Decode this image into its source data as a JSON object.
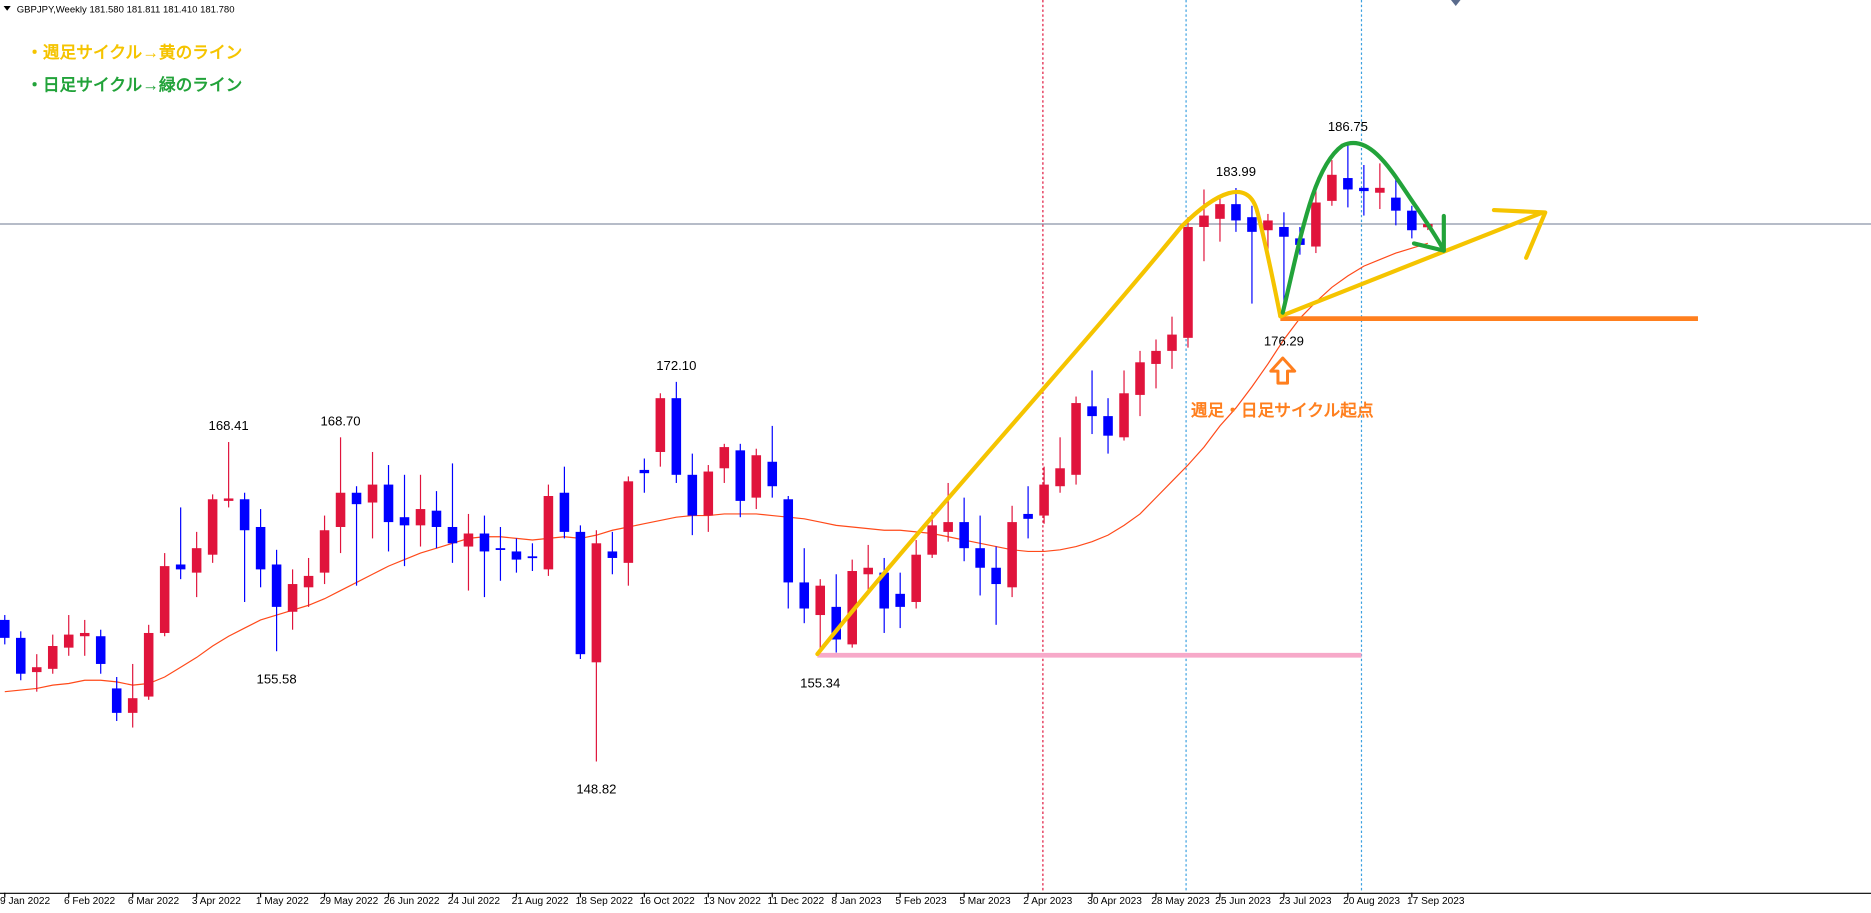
{
  "header": {
    "symbol": "GBPJPY,Weekly",
    "ohlc": [
      "181.580",
      "181.811",
      "181.410",
      "181.780"
    ]
  },
  "chart_data": {
    "type": "candlestick",
    "categories": [
      "9 Jan 2022",
      null,
      null,
      null,
      "6 Feb 2022",
      null,
      null,
      null,
      "6 Mar 2022",
      null,
      null,
      null,
      "3 Apr 2022",
      null,
      null,
      null,
      "1 May 2022",
      null,
      null,
      null,
      "29 May 2022",
      null,
      null,
      null,
      "26 Jun 2022",
      null,
      null,
      null,
      "24 Jul 2022",
      null,
      null,
      null,
      "21 Aug 2022",
      null,
      null,
      null,
      "18 Sep 2022",
      null,
      null,
      null,
      "16 Oct 2022",
      null,
      null,
      null,
      "13 Nov 2022",
      null,
      null,
      null,
      "11 Dec 2022",
      null,
      null,
      null,
      "8 Jan 2023",
      null,
      null,
      null,
      "5 Feb 2023",
      null,
      null,
      null,
      "5 Mar 2023",
      null,
      null,
      null,
      "2 Apr 2023",
      null,
      null,
      null,
      "30 Apr 2023",
      null,
      null,
      null,
      "28 May 2023",
      null,
      null,
      null,
      "25 Jun 2023",
      null,
      null,
      null,
      "23 Jul 2023",
      null,
      null,
      null,
      "20 Aug 2023",
      null,
      null,
      null,
      "17 Sep 2023",
      null
    ],
    "open": [
      157.5,
      156.4,
      154.3,
      154.5,
      155.8,
      156.5,
      156.5,
      153.3,
      151.8,
      152.8,
      156.7,
      160.9,
      160.4,
      161.5,
      164.8,
      164.9,
      163.2,
      160.9,
      158.0,
      159.5,
      160.4,
      163.2,
      165.3,
      164.7,
      165.8,
      163.8,
      163.3,
      164.2,
      163.2,
      162.0,
      162.8,
      161.9,
      161.7,
      161.4,
      160.6,
      165.3,
      162.9,
      154.9,
      161.7,
      161.0,
      166.7,
      167.8,
      171.1,
      166.4,
      163.9,
      166.8,
      167.9,
      165.0,
      167.2,
      164.9,
      159.8,
      157.8,
      158.3,
      156.0,
      160.3,
      160.4,
      159.1,
      158.6,
      161.5,
      162.9,
      163.5,
      161.9,
      160.7,
      159.5,
      164.0,
      163.9,
      165.7,
      166.4,
      170.6,
      170.0,
      168.7,
      171.3,
      173.2,
      174.0,
      174.8,
      181.6,
      182.1,
      183.0,
      182.2,
      181.4,
      181.6,
      180.9,
      180.4,
      183.2,
      184.6,
      184.0,
      183.7,
      183.4,
      182.6,
      181.58
    ],
    "high": [
      157.8,
      156.8,
      155.4,
      156.6,
      157.8,
      157.5,
      156.9,
      154.0,
      154.8,
      157.2,
      161.6,
      164.4,
      162.9,
      165.2,
      168.41,
      165.3,
      164.3,
      161.8,
      160.6,
      161.3,
      163.9,
      168.7,
      165.7,
      167.8,
      167.0,
      166.4,
      166.4,
      165.4,
      167.1,
      164.0,
      163.9,
      163.2,
      162.5,
      162.2,
      165.8,
      166.9,
      163.3,
      163.0,
      162.9,
      166.3,
      167.4,
      171.4,
      172.1,
      167.7,
      167.0,
      168.3,
      168.3,
      168.0,
      169.4,
      165.1,
      161.9,
      160.0,
      160.3,
      161.2,
      162.1,
      161.3,
      160.4,
      162.4,
      164.1,
      165.9,
      165.0,
      163.9,
      162.0,
      164.5,
      165.7,
      166.9,
      168.7,
      171.2,
      172.8,
      171.1,
      172.8,
      174.0,
      174.7,
      176.1,
      182.2,
      183.9,
      183.5,
      183.99,
      182.9,
      182.4,
      182.5,
      181.6,
      183.8,
      185.7,
      186.75,
      185.4,
      185.5,
      184.8,
      182.9,
      181.811
    ],
    "low": [
      156.0,
      153.8,
      153.1,
      154.2,
      155.3,
      155.3,
      154.2,
      151.3,
      150.9,
      152.6,
      156.5,
      160.0,
      158.9,
      161.0,
      164.4,
      158.6,
      159.5,
      155.58,
      156.9,
      158.3,
      159.7,
      161.6,
      159.6,
      162.5,
      161.7,
      160.8,
      162.0,
      161.9,
      161.0,
      159.3,
      158.9,
      159.9,
      160.4,
      160.5,
      160.2,
      162.5,
      155.1,
      148.82,
      160.3,
      159.6,
      165.3,
      166.9,
      165.9,
      162.7,
      162.9,
      165.9,
      163.8,
      164.3,
      165.0,
      158.2,
      157.3,
      155.34,
      155.5,
      155.8,
      159.3,
      156.7,
      157.0,
      158.2,
      161.3,
      162.3,
      161.1,
      159.0,
      157.2,
      158.9,
      162.5,
      163.4,
      165.3,
      165.8,
      168.9,
      167.7,
      168.5,
      170.0,
      171.7,
      172.9,
      174.2,
      179.5,
      180.7,
      181.3,
      176.9,
      179.4,
      176.29,
      179.9,
      180.0,
      182.9,
      182.8,
      182.3,
      182.7,
      181.7,
      180.9,
      181.41
    ],
    "close": [
      156.4,
      154.2,
      154.6,
      155.9,
      156.6,
      156.7,
      154.8,
      151.8,
      152.7,
      156.7,
      160.8,
      160.6,
      161.9,
      164.9,
      164.95,
      163.0,
      160.6,
      158.3,
      159.7,
      160.2,
      163.0,
      165.3,
      164.6,
      165.8,
      163.5,
      163.3,
      164.3,
      163.2,
      162.2,
      162.8,
      161.7,
      161.8,
      161.2,
      161.3,
      165.1,
      162.9,
      155.4,
      162.2,
      161.3,
      166.0,
      166.5,
      171.1,
      166.4,
      163.9,
      166.6,
      168.1,
      164.8,
      167.6,
      165.7,
      159.8,
      158.2,
      159.6,
      156.3,
      160.5,
      160.7,
      158.2,
      158.3,
      161.5,
      163.3,
      163.5,
      161.9,
      160.7,
      159.7,
      163.5,
      163.7,
      165.8,
      166.8,
      170.8,
      170.0,
      168.8,
      171.4,
      173.3,
      174.0,
      175.0,
      181.6,
      182.3,
      183.0,
      182.0,
      181.3,
      182.0,
      181.0,
      180.5,
      183.1,
      184.8,
      183.9,
      183.8,
      184.0,
      182.6,
      181.4,
      181.78
    ],
    "high_labels": [
      null,
      null,
      null,
      null,
      null,
      null,
      null,
      null,
      null,
      null,
      null,
      null,
      null,
      null,
      "168.41",
      null,
      null,
      null,
      null,
      null,
      null,
      "168.70",
      null,
      null,
      null,
      null,
      null,
      null,
      null,
      null,
      null,
      null,
      null,
      null,
      null,
      null,
      null,
      null,
      null,
      null,
      null,
      null,
      "172.10",
      null,
      null,
      null,
      null,
      null,
      null,
      null,
      null,
      null,
      null,
      null,
      null,
      null,
      null,
      null,
      null,
      null,
      null,
      null,
      null,
      null,
      null,
      null,
      null,
      null,
      null,
      null,
      null,
      null,
      null,
      null,
      null,
      null,
      null,
      "183.99",
      null,
      null,
      null,
      null,
      null,
      null,
      "186.75",
      null,
      null,
      null,
      null,
      null
    ],
    "low_labels": [
      null,
      null,
      null,
      null,
      null,
      null,
      null,
      null,
      null,
      null,
      null,
      null,
      null,
      null,
      null,
      null,
      null,
      "155.58",
      null,
      null,
      null,
      null,
      null,
      null,
      null,
      null,
      null,
      null,
      null,
      null,
      null,
      null,
      null,
      null,
      null,
      null,
      null,
      "148.82",
      null,
      null,
      null,
      null,
      null,
      null,
      null,
      null,
      null,
      null,
      null,
      null,
      null,
      "155.34",
      null,
      null,
      null,
      null,
      null,
      null,
      null,
      null,
      null,
      null,
      null,
      null,
      null,
      null,
      null,
      null,
      null,
      null,
      null,
      null,
      null,
      null,
      null,
      null,
      null,
      null,
      null,
      null,
      "176.29",
      null,
      null,
      null,
      null,
      null,
      null,
      null,
      null,
      null
    ],
    "up_color": "#e0143c",
    "down_color": "#0000ff",
    "ma": {
      "color": "#ff4a1a",
      "values": [
        153.1,
        153.2,
        153.3,
        153.5,
        153.6,
        153.8,
        153.8,
        153.7,
        153.5,
        153.6,
        154.0,
        154.6,
        155.2,
        155.9,
        156.5,
        157.0,
        157.5,
        157.8,
        158.1,
        158.4,
        158.8,
        159.3,
        159.8,
        160.3,
        160.8,
        161.2,
        161.6,
        161.9,
        162.2,
        162.5,
        162.6,
        162.6,
        162.5,
        162.4,
        162.5,
        162.6,
        162.5,
        162.7,
        163.0,
        163.2,
        163.4,
        163.6,
        163.8,
        163.9,
        163.9,
        164.0,
        164.0,
        164.0,
        163.9,
        163.8,
        163.7,
        163.5,
        163.3,
        163.2,
        163.1,
        163.0,
        163.0,
        162.9,
        162.8,
        162.6,
        162.4,
        162.2,
        162.0,
        161.8,
        161.7,
        161.7,
        161.8,
        162.0,
        162.3,
        162.7,
        163.3,
        164.0,
        165.0,
        166.0,
        167.0,
        168.1,
        169.4,
        170.5,
        171.8,
        173.2,
        174.7,
        176.0,
        177.0,
        177.9,
        178.6,
        179.2,
        179.6,
        180.0,
        180.3,
        180.6
      ]
    },
    "ylim": [
      140.77,
      195.52
    ],
    "annotations": {
      "legend_weekly": "・週足サイクル→黄のライン",
      "legend_daily": "・日足サイクル→緑のライン",
      "origin": "週足・日足サイクル起点"
    }
  }
}
